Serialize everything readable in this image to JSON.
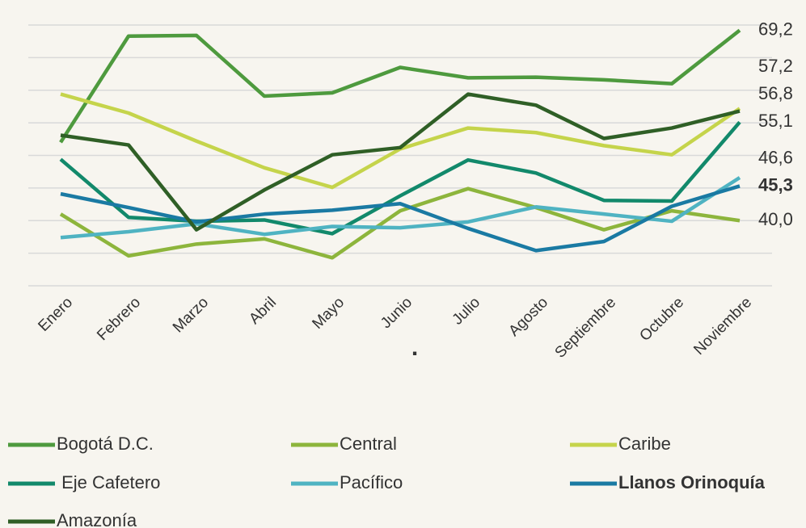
{
  "chart_data": {
    "type": "line",
    "categories": [
      "Enero",
      "Febrero",
      "Marzo",
      "Abril",
      "Mayo",
      "Junio",
      "Julio",
      "Agosto",
      "Septiembre",
      "Octubre",
      "Noviembre"
    ],
    "series": [
      {
        "name": "Bogotá D.C.",
        "color": "#4e9a3e",
        "values": [
          52.0,
          68.3,
          68.4,
          59.1,
          59.6,
          63.5,
          61.9,
          62.0,
          61.6,
          61.0,
          69.2
        ],
        "value_labels": [
          null,
          null,
          null,
          null,
          null,
          null,
          null,
          null,
          null,
          null,
          "69,2"
        ]
      },
      {
        "name": "Central",
        "color": "#8db53c",
        "values": [
          41.0,
          34.6,
          36.4,
          37.2,
          34.3,
          41.5,
          44.9,
          42.0,
          38.6,
          41.5,
          40.0
        ],
        "value_labels": [
          null,
          null,
          null,
          null,
          null,
          null,
          null,
          null,
          null,
          null,
          "40,0"
        ]
      },
      {
        "name": "Caribe",
        "color": "#c5d44b",
        "values": [
          59.4,
          56.5,
          52.2,
          48.1,
          45.1,
          51.0,
          54.2,
          53.5,
          51.5,
          50.1,
          57.2
        ],
        "value_labels": [
          null,
          null,
          null,
          null,
          null,
          null,
          null,
          null,
          null,
          null,
          "57,2"
        ]
      },
      {
        "name": " Eje Cafetero",
        "color": "#12896b",
        "values": [
          49.4,
          40.5,
          39.9,
          40.1,
          38.0,
          43.8,
          49.3,
          47.3,
          43.1,
          43.0,
          55.1
        ],
        "value_labels": [
          null,
          null,
          null,
          null,
          null,
          null,
          null,
          null,
          null,
          null,
          "55,1"
        ]
      },
      {
        "name": "Pacífico",
        "color": "#4fb3c2",
        "values": [
          37.4,
          38.3,
          39.5,
          37.9,
          39.1,
          38.9,
          39.8,
          42.1,
          41.0,
          39.9,
          46.6
        ],
        "value_labels": [
          null,
          null,
          null,
          null,
          null,
          null,
          null,
          null,
          null,
          null,
          "46,6"
        ]
      },
      {
        "name": "Llanos Orinoquía",
        "color": "#1a7aa3",
        "bold": true,
        "values": [
          44.1,
          42.0,
          39.8,
          41.0,
          41.6,
          42.6,
          38.8,
          35.4,
          36.8,
          42.2,
          45.3
        ],
        "value_labels": [
          null,
          null,
          null,
          null,
          null,
          null,
          null,
          null,
          null,
          null,
          "45,3"
        ]
      },
      {
        "name": "Amazonía",
        "color": "#2f5f26",
        "values": [
          53.1,
          51.6,
          38.6,
          44.7,
          50.1,
          51.2,
          59.4,
          57.7,
          52.6,
          54.2,
          56.8
        ],
        "value_labels": [
          null,
          null,
          null,
          null,
          null,
          null,
          null,
          null,
          null,
          null,
          "56,8"
        ]
      }
    ],
    "annotation": ".",
    "ylim": [
      30,
      70
    ],
    "yticks": [
      30,
      35,
      40,
      45,
      50,
      55,
      60,
      65,
      70
    ],
    "grid": true,
    "legend": "bottom"
  }
}
